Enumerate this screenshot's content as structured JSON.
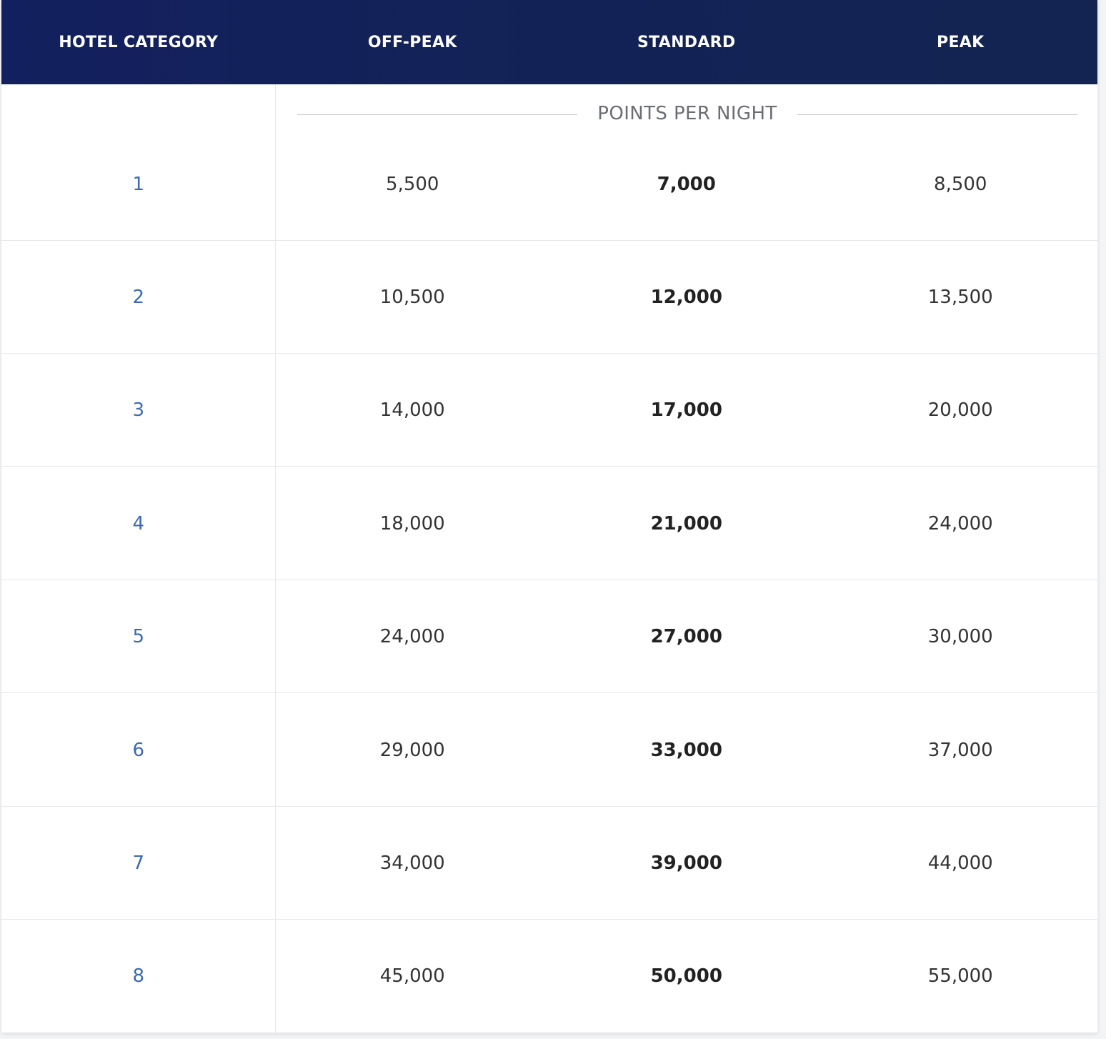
{
  "table": {
    "headers": [
      "HOTEL CATEGORY",
      "OFF-PEAK",
      "STANDARD",
      "PEAK"
    ],
    "subheader": "POINTS PER NIGHT",
    "rows": [
      {
        "category": "1",
        "off_peak": "5,500",
        "standard": "7,000",
        "peak": "8,500"
      },
      {
        "category": "2",
        "off_peak": "10,500",
        "standard": "12,000",
        "peak": "13,500"
      },
      {
        "category": "3",
        "off_peak": "14,000",
        "standard": "17,000",
        "peak": "20,000"
      },
      {
        "category": "4",
        "off_peak": "18,000",
        "standard": "21,000",
        "peak": "24,000"
      },
      {
        "category": "5",
        "off_peak": "24,000",
        "standard": "27,000",
        "peak": "30,000"
      },
      {
        "category": "6",
        "off_peak": "29,000",
        "standard": "33,000",
        "peak": "37,000"
      },
      {
        "category": "7",
        "off_peak": "34,000",
        "standard": "39,000",
        "peak": "44,000"
      },
      {
        "category": "8",
        "off_peak": "45,000",
        "standard": "50,000",
        "peak": "55,000"
      }
    ]
  },
  "colors": {
    "header_bg": "#13205f",
    "category_text": "#3a6bb0",
    "body_text": "#333333"
  }
}
